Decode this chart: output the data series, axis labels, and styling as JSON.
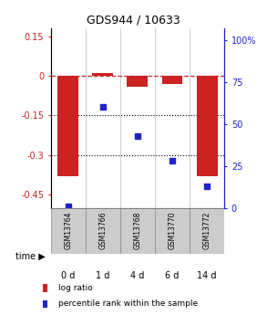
{
  "title": "GDS944 / 10633",
  "samples": [
    "GSM13764",
    "GSM13766",
    "GSM13768",
    "GSM13770",
    "GSM13772"
  ],
  "time_labels": [
    "0 d",
    "1 d",
    "4 d",
    "6 d",
    "14 d"
  ],
  "log_ratio": [
    -0.38,
    0.01,
    -0.04,
    -0.03,
    -0.38
  ],
  "percentile_rank": [
    1,
    60,
    43,
    28,
    13
  ],
  "bar_color": "#cc2222",
  "dot_color": "#2222cc",
  "ylim_left": [
    -0.5,
    0.18
  ],
  "ylim_right": [
    0,
    107
  ],
  "yticks_left": [
    0.15,
    0,
    -0.15,
    -0.3,
    -0.45
  ],
  "yticks_right": [
    100,
    75,
    50,
    25,
    0
  ],
  "hline_dotted": [
    -0.15,
    -0.3
  ],
  "background_color": "#ffffff",
  "plot_bg": "#ffffff",
  "gsm_bg": "#cccccc",
  "time_bg_colors": [
    "#ccffcc",
    "#ccffcc",
    "#ccffcc",
    "#99ee99",
    "#66dd66"
  ],
  "legend_items": [
    {
      "label": "log ratio",
      "color": "#cc2222"
    },
    {
      "label": "percentile rank within the sample",
      "color": "#2222cc"
    }
  ]
}
